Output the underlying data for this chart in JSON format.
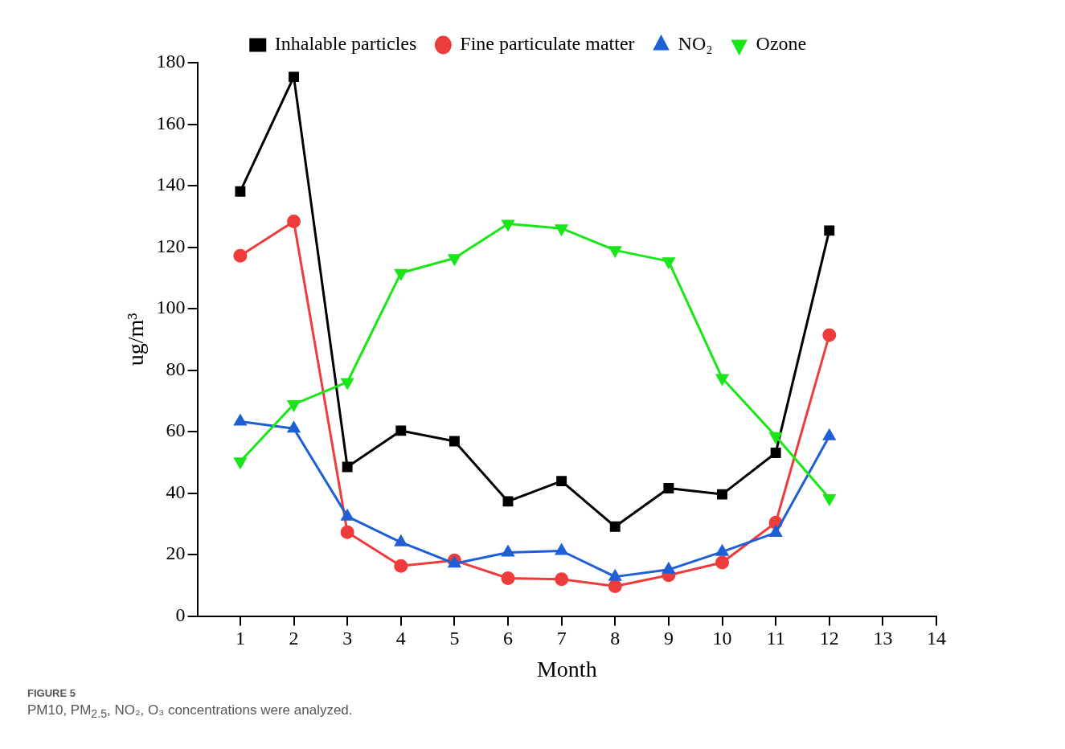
{
  "chart_data": {
    "type": "line",
    "xlabel": "Month",
    "ylabel": "ug/m³",
    "x": [
      1,
      2,
      3,
      4,
      5,
      6,
      7,
      8,
      9,
      10,
      11,
      12
    ],
    "xlim": [
      0.2,
      14
    ],
    "xticks": [
      1,
      2,
      3,
      4,
      5,
      6,
      7,
      8,
      9,
      10,
      11,
      12,
      13,
      14
    ],
    "ylim": [
      0,
      180
    ],
    "yticks": [
      0,
      20,
      40,
      60,
      80,
      100,
      120,
      140,
      160,
      180
    ],
    "grid": false,
    "legend": "top",
    "line_style": "solid",
    "series": [
      {
        "name": "Inhalable particles",
        "color": "#000000",
        "marker": "square",
        "values": [
          138.1,
          175.4,
          48.5,
          60.3,
          56.9,
          37.3,
          43.9,
          29.1,
          41.6,
          39.6,
          53.1,
          125.4
        ]
      },
      {
        "name": "Fine particulate matter",
        "color": "#ee3b3b",
        "marker": "circle",
        "values": [
          117.2,
          128.4,
          27.3,
          16.3,
          18.1,
          12.3,
          12.0,
          9.7,
          13.3,
          17.4,
          30.4,
          91.4
        ]
      },
      {
        "name": "NO₂",
        "color": "#1f5fd6",
        "marker": "triangle",
        "values": [
          63.3,
          61.0,
          32.4,
          24.0,
          17.1,
          20.7,
          21.2,
          12.8,
          15.1,
          20.9,
          27.1,
          58.5
        ]
      },
      {
        "name": "Ozone",
        "color": "#19e619",
        "marker": "triangle_down",
        "values": [
          50.3,
          68.9,
          76.1,
          111.6,
          116.4,
          127.6,
          126.1,
          119.0,
          115.4,
          77.4,
          58.5,
          38.3
        ]
      }
    ],
    "annotations": [
      "FIGURE 5",
      "PM10, PM$_{2.5}$, NO₂, O₃ concentrations were analyzed."
    ]
  }
}
